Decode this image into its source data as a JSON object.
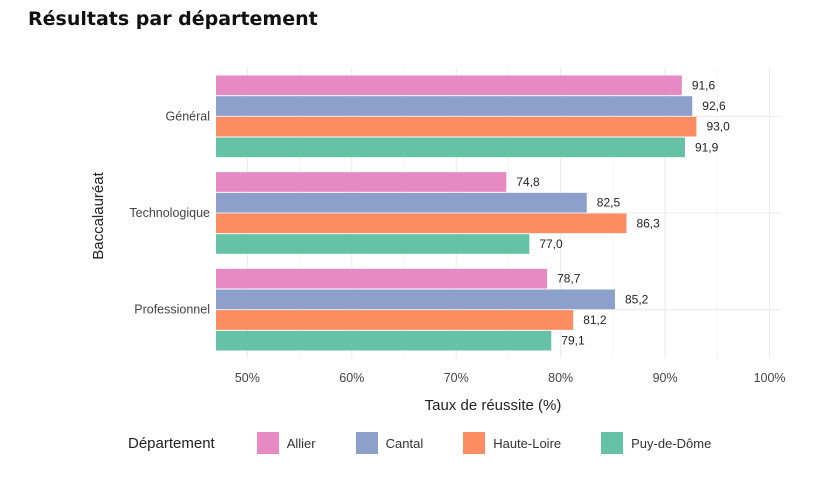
{
  "title": "Résultats par département",
  "colors": {
    "Allier": "#e78ac3",
    "Cantal": "#8da0cb",
    "Haute-Loire": "#fc8d62",
    "Puy-de-Dôme": "#66c2a5"
  },
  "chart_data": {
    "type": "bar",
    "orientation": "horizontal",
    "xlabel": "Taux de réussite (%)",
    "ylabel": "Baccalauréat",
    "xlim": [
      47,
      101
    ],
    "x_ticks": [
      "50%",
      "60%",
      "70%",
      "80%",
      "90%",
      "100%"
    ],
    "x_tick_values": [
      50,
      60,
      70,
      80,
      90,
      100
    ],
    "grid": true,
    "legend_placement": "bottom",
    "legend_title": "Département",
    "categories": [
      "Général",
      "Technologique",
      "Professionnel"
    ],
    "series": [
      {
        "name": "Allier",
        "values": [
          91.6,
          74.8,
          78.7
        ],
        "labels": [
          "91,6",
          "74,8",
          "78,7"
        ]
      },
      {
        "name": "Cantal",
        "values": [
          92.6,
          82.5,
          85.2
        ],
        "labels": [
          "92,6",
          "82,5",
          "85,2"
        ]
      },
      {
        "name": "Haute-Loire",
        "values": [
          93.0,
          86.3,
          81.2
        ],
        "labels": [
          "93,0",
          "86,3",
          "81,2"
        ]
      },
      {
        "name": "Puy-de-Dôme",
        "values": [
          91.9,
          77.0,
          79.1
        ],
        "labels": [
          "91,9",
          "77,0",
          "79,1"
        ]
      }
    ]
  }
}
